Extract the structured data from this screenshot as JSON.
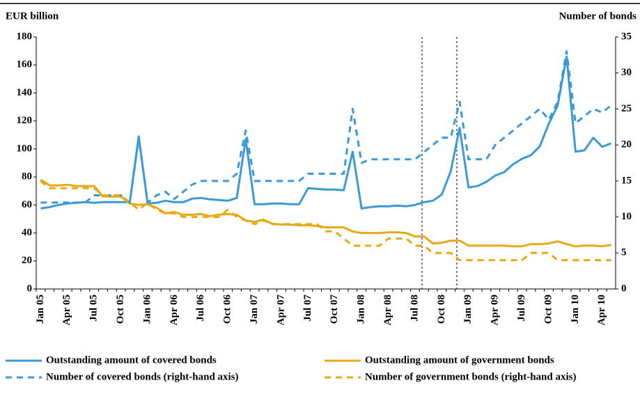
{
  "chart_data": {
    "type": "line",
    "y_label": "EUR billion",
    "y2_label": "Number of bonds",
    "categories": [
      "Jan 05",
      null,
      null,
      "Apr 05",
      null,
      null,
      "Jul 05",
      null,
      null,
      "Oct 05",
      null,
      null,
      "Jan 06",
      null,
      null,
      "Apr 06",
      null,
      null,
      "Jul 06",
      null,
      null,
      "Oct 06",
      null,
      null,
      "Jan 07",
      null,
      null,
      "Apr 07",
      null,
      null,
      "Jul 07",
      null,
      null,
      "Oct 07",
      null,
      null,
      "Jan 08",
      null,
      null,
      "Apr 08",
      null,
      null,
      "Jul 08",
      null,
      null,
      "Oct 08",
      null,
      null,
      "Jan 09",
      null,
      null,
      "Apr 09",
      null,
      null,
      "Jul 09",
      null,
      null,
      "Oct 09",
      null,
      null,
      "Jan 10",
      null,
      null,
      "Apr 10",
      null
    ],
    "ylim": [
      0,
      180
    ],
    "yticks": [
      0,
      20,
      40,
      60,
      80,
      100,
      120,
      140,
      160,
      180
    ],
    "y2lim": [
      0,
      35
    ],
    "y2ticks": [
      0,
      5,
      10,
      15,
      20,
      25,
      30,
      35
    ],
    "series": [
      {
        "name": "Outstanding amount of covered bonds",
        "color": "#3a9ad9",
        "dash": false,
        "values": [
          57.5,
          58.5,
          60,
          61,
          61.5,
          62,
          61.5,
          62,
          62,
          62,
          62,
          109,
          61,
          61.5,
          63,
          62,
          62,
          64.5,
          65,
          64,
          63.5,
          63,
          65,
          107,
          60.5,
          60.5,
          61,
          61,
          60.5,
          60.5,
          72,
          71.5,
          71,
          71,
          70.5,
          98,
          57.5,
          58.5,
          59,
          59,
          59.5,
          59,
          60,
          62,
          63,
          67.5,
          84,
          115,
          72.5,
          73.5,
          76.5,
          81,
          83.5,
          89,
          93,
          95.5,
          102,
          118,
          131,
          166,
          98,
          99,
          108,
          101.5,
          104
        ]
      },
      {
        "name": "Outstanding amount of government bonds",
        "color": "#e8a917",
        "dash": false,
        "values": [
          78,
          74,
          74,
          74.5,
          73.5,
          73.5,
          73.5,
          66,
          66,
          66,
          61,
          60,
          60.5,
          58,
          54,
          55,
          53,
          53,
          53.5,
          52,
          53,
          53.5,
          53,
          49,
          48,
          49.5,
          46.5,
          46,
          46,
          45.5,
          45.5,
          45,
          44,
          44,
          44,
          41,
          40,
          40,
          40,
          40.5,
          40.5,
          40,
          37.5,
          37.5,
          32.5,
          33,
          34.5,
          34.5,
          31,
          31,
          31,
          31,
          31,
          30.5,
          30.5,
          32,
          32,
          32.5,
          34,
          32,
          30.5,
          31,
          31,
          30.5,
          31.5
        ]
      },
      {
        "name": "Number of covered bonds (right-hand axis)",
        "color": "#3a9ad9",
        "dash": true,
        "axis": "y2",
        "values": [
          12,
          12,
          12,
          12,
          12,
          12,
          13,
          13,
          13,
          13,
          12,
          21,
          12,
          13,
          13.5,
          12.5,
          13.5,
          14.5,
          15,
          15,
          15,
          15,
          16,
          22,
          15,
          15,
          15,
          15,
          15,
          15,
          16,
          16,
          16,
          16,
          16,
          25,
          17.5,
          18,
          18,
          18,
          18,
          18,
          18,
          19,
          20,
          21,
          21,
          26,
          18,
          18,
          18,
          20,
          21,
          22,
          23,
          24,
          25,
          23.5,
          26,
          33,
          23,
          24,
          25,
          24.5,
          25.5
        ]
      },
      {
        "name": "Number of government bonds (right-hand axis)",
        "color": "#e8a917",
        "dash": true,
        "axis": "y2",
        "values": [
          15,
          14,
          14,
          14,
          14,
          14,
          14,
          13,
          13,
          13,
          12,
          11,
          12,
          11,
          10.5,
          10.5,
          10,
          10,
          10,
          10,
          10,
          11,
          10,
          9.5,
          9,
          9.5,
          9,
          9,
          9,
          9,
          9,
          9,
          8,
          8,
          7,
          6,
          6,
          6,
          6,
          7,
          7,
          7,
          6,
          6,
          5,
          5,
          5,
          4,
          4,
          4,
          4,
          4,
          4,
          4,
          4,
          5,
          5,
          5,
          4,
          4,
          4,
          4,
          4,
          4,
          4
        ]
      }
    ]
  }
}
